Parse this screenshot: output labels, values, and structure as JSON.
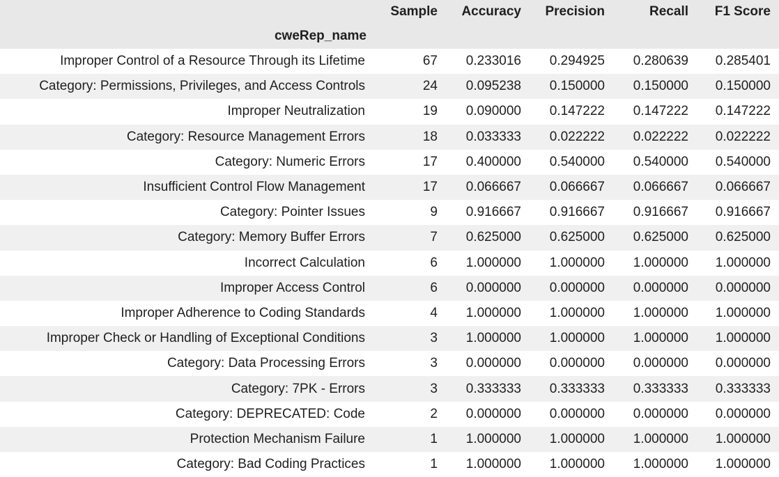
{
  "table": {
    "columns": [
      "Sample",
      "Accuracy",
      "Precision",
      "Recall",
      "F1 Score"
    ],
    "index_name": "cweRep_name",
    "rows": [
      {
        "name": "Improper Control of a Resource Through its Lifetime",
        "sample": "67",
        "accuracy": "0.233016",
        "precision": "0.294925",
        "recall": "0.280639",
        "f1": "0.285401"
      },
      {
        "name": "Category: Permissions, Privileges, and Access Controls",
        "sample": "24",
        "accuracy": "0.095238",
        "precision": "0.150000",
        "recall": "0.150000",
        "f1": "0.150000"
      },
      {
        "name": "Improper Neutralization",
        "sample": "19",
        "accuracy": "0.090000",
        "precision": "0.147222",
        "recall": "0.147222",
        "f1": "0.147222"
      },
      {
        "name": "Category: Resource Management Errors",
        "sample": "18",
        "accuracy": "0.033333",
        "precision": "0.022222",
        "recall": "0.022222",
        "f1": "0.022222"
      },
      {
        "name": "Category: Numeric Errors",
        "sample": "17",
        "accuracy": "0.400000",
        "precision": "0.540000",
        "recall": "0.540000",
        "f1": "0.540000"
      },
      {
        "name": "Insufficient Control Flow Management",
        "sample": "17",
        "accuracy": "0.066667",
        "precision": "0.066667",
        "recall": "0.066667",
        "f1": "0.066667"
      },
      {
        "name": "Category: Pointer Issues",
        "sample": "9",
        "accuracy": "0.916667",
        "precision": "0.916667",
        "recall": "0.916667",
        "f1": "0.916667"
      },
      {
        "name": "Category: Memory Buffer Errors",
        "sample": "7",
        "accuracy": "0.625000",
        "precision": "0.625000",
        "recall": "0.625000",
        "f1": "0.625000"
      },
      {
        "name": "Incorrect Calculation",
        "sample": "6",
        "accuracy": "1.000000",
        "precision": "1.000000",
        "recall": "1.000000",
        "f1": "1.000000"
      },
      {
        "name": "Improper Access Control",
        "sample": "6",
        "accuracy": "0.000000",
        "precision": "0.000000",
        "recall": "0.000000",
        "f1": "0.000000"
      },
      {
        "name": "Improper Adherence to Coding Standards",
        "sample": "4",
        "accuracy": "1.000000",
        "precision": "1.000000",
        "recall": "1.000000",
        "f1": "1.000000"
      },
      {
        "name": "Improper Check or Handling of Exceptional Conditions",
        "sample": "3",
        "accuracy": "1.000000",
        "precision": "1.000000",
        "recall": "1.000000",
        "f1": "1.000000"
      },
      {
        "name": "Category: Data Processing Errors",
        "sample": "3",
        "accuracy": "0.000000",
        "precision": "0.000000",
        "recall": "0.000000",
        "f1": "0.000000"
      },
      {
        "name": "Category: 7PK - Errors",
        "sample": "3",
        "accuracy": "0.333333",
        "precision": "0.333333",
        "recall": "0.333333",
        "f1": "0.333333"
      },
      {
        "name": "Category: DEPRECATED: Code",
        "sample": "2",
        "accuracy": "0.000000",
        "precision": "0.000000",
        "recall": "0.000000",
        "f1": "0.000000"
      },
      {
        "name": "Protection Mechanism Failure",
        "sample": "1",
        "accuracy": "1.000000",
        "precision": "1.000000",
        "recall": "1.000000",
        "f1": "1.000000"
      },
      {
        "name": "Category: Bad Coding Practices",
        "sample": "1",
        "accuracy": "1.000000",
        "precision": "1.000000",
        "recall": "1.000000",
        "f1": "1.000000"
      }
    ]
  }
}
